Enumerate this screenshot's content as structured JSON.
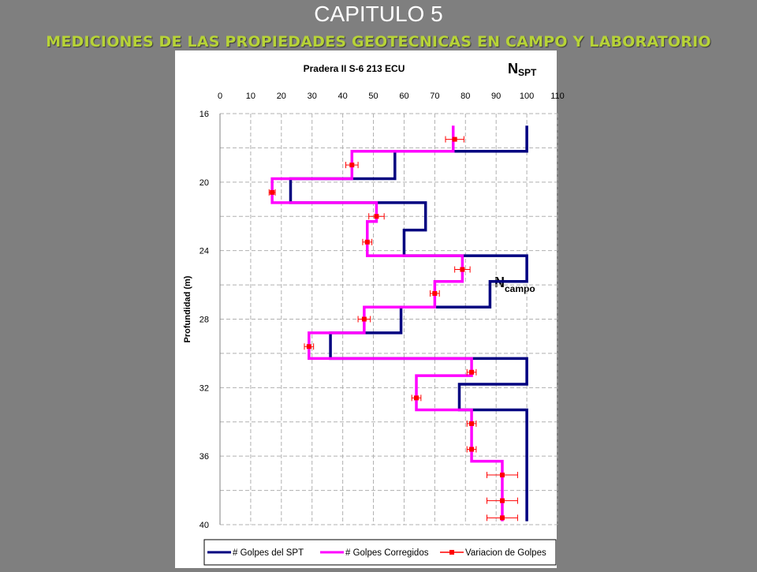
{
  "slide": {
    "title": "CAPITULO 5",
    "subtitle": "MEDICIONES DE LAS PROPIEDADES GEOTECNICAS EN CAMPO Y LABORATORIO",
    "background": "#7f7f7f",
    "title_color": "#ffffff",
    "subtitle_color": "#b7d337"
  },
  "chart_data": {
    "type": "line",
    "title": "Pradera II  S-6  213 ECU",
    "corner_label": {
      "main": "N",
      "sub": "SPT"
    },
    "annotation": {
      "main": "N",
      "sub": "campo"
    },
    "ylabel": "Profundidad (m)",
    "xlim": [
      0,
      110
    ],
    "ylim": [
      16,
      40
    ],
    "y_reversed": true,
    "x_axis_position": "top",
    "x_ticks": [
      "0",
      "10",
      "20",
      "30",
      "40",
      "50",
      "60",
      "70",
      "80",
      "90",
      "100",
      "110"
    ],
    "y_ticks": [
      "16",
      "20",
      "24",
      "28",
      "32",
      "36",
      "40"
    ],
    "grid": true,
    "legend_position": "bottom",
    "series": [
      {
        "name": "# Golpes del SPT",
        "color": "#000080",
        "points": [
          [
            100,
            16.7
          ],
          [
            100,
            18.2
          ],
          [
            57,
            18.2
          ],
          [
            57,
            19.8
          ],
          [
            23,
            19.8
          ],
          [
            23,
            21.2
          ],
          [
            67,
            21.2
          ],
          [
            67,
            22.8
          ],
          [
            60,
            22.8
          ],
          [
            60,
            24.3
          ],
          [
            100,
            24.3
          ],
          [
            100,
            25.8
          ],
          [
            88,
            25.8
          ],
          [
            88,
            27.3
          ],
          [
            59,
            27.3
          ],
          [
            59,
            28.8
          ],
          [
            36,
            28.8
          ],
          [
            36,
            30.3
          ],
          [
            100,
            30.3
          ],
          [
            100,
            31.8
          ],
          [
            78,
            31.8
          ],
          [
            78,
            33.3
          ],
          [
            100,
            33.3
          ],
          [
            100,
            39.8
          ]
        ]
      },
      {
        "name": "# Golpes Corregidos",
        "color": "#ff00ff",
        "points": [
          [
            76,
            16.7
          ],
          [
            76,
            18.2
          ],
          [
            43,
            18.2
          ],
          [
            43,
            19.8
          ],
          [
            17,
            19.8
          ],
          [
            17,
            21.2
          ],
          [
            51,
            21.2
          ],
          [
            51,
            22.3
          ],
          [
            48,
            22.3
          ],
          [
            48,
            24.3
          ],
          [
            79,
            24.3
          ],
          [
            79,
            25.8
          ],
          [
            70,
            25.8
          ],
          [
            70,
            27.3
          ],
          [
            47,
            27.3
          ],
          [
            47,
            28.8
          ],
          [
            29,
            28.8
          ],
          [
            29,
            30.3
          ],
          [
            82,
            30.3
          ],
          [
            82,
            31.3
          ],
          [
            64,
            31.3
          ],
          [
            64,
            33.3
          ],
          [
            82,
            33.3
          ],
          [
            82,
            36.3
          ],
          [
            92,
            36.3
          ],
          [
            92,
            39.8
          ]
        ]
      },
      {
        "name": "Variacion de Golpes",
        "color": "#ff0000",
        "points": [
          [
            76.5,
            17.5,
            3
          ],
          [
            43,
            19.0,
            2
          ],
          [
            17,
            20.6,
            1
          ],
          [
            51,
            22.0,
            2.5
          ],
          [
            48,
            23.5,
            1.5
          ],
          [
            79,
            25.1,
            2.5
          ],
          [
            70,
            26.5,
            1.5
          ],
          [
            47,
            28.0,
            2
          ],
          [
            29,
            29.6,
            1.5
          ],
          [
            82,
            31.1,
            1.5
          ],
          [
            64,
            32.6,
            1.5
          ],
          [
            82,
            34.1,
            1.5
          ],
          [
            82,
            35.6,
            1.5
          ],
          [
            92,
            37.1,
            5
          ],
          [
            92,
            38.6,
            5
          ],
          [
            92,
            39.6,
            5
          ]
        ]
      }
    ]
  }
}
